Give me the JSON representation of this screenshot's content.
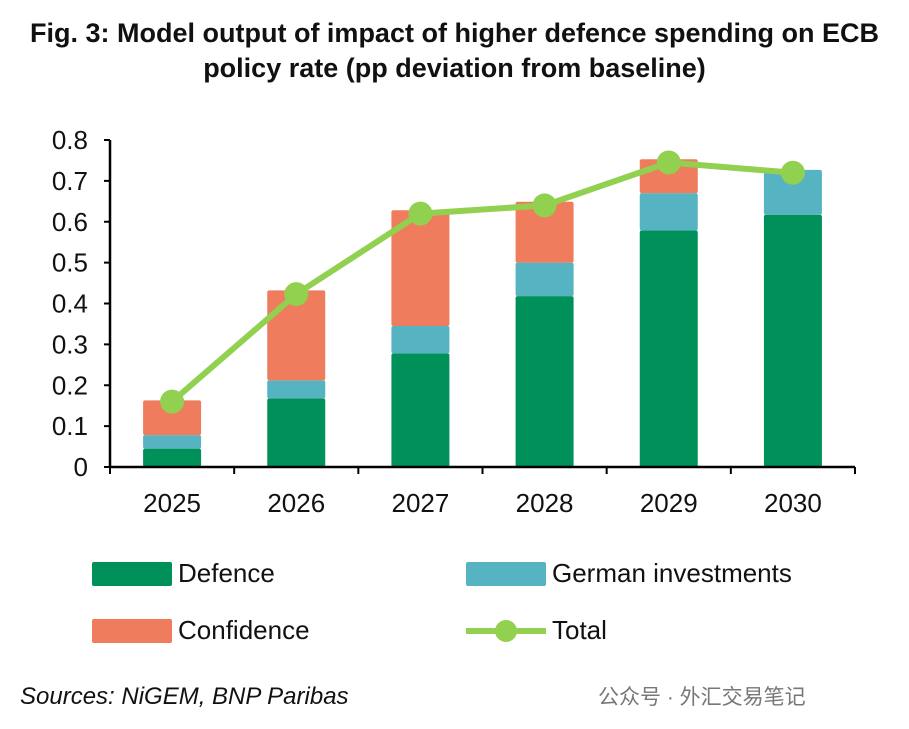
{
  "chart_data": {
    "type": "bar",
    "stacked": true,
    "title": "Fig. 3: Model output of impact of higher defence spending on ECB policy rate (pp deviation from baseline)",
    "xlabel": "",
    "ylabel": "",
    "ylim": [
      0,
      0.8
    ],
    "yticks": [
      "0",
      "0.1",
      "0.2",
      "0.3",
      "0.4",
      "0.5",
      "0.6",
      "0.7",
      "0.8"
    ],
    "categories": [
      "2025",
      "2026",
      "2027",
      "2028",
      "2029",
      "2030"
    ],
    "series": [
      {
        "name": "Defence",
        "kind": "bar",
        "color": "#00905A",
        "values": [
          0.045,
          0.168,
          0.278,
          0.418,
          0.579,
          0.617
        ]
      },
      {
        "name": "German investments",
        "kind": "bar",
        "color": "#56B4C2",
        "values": [
          0.033,
          0.044,
          0.067,
          0.082,
          0.091,
          0.11
        ]
      },
      {
        "name": "Confidence",
        "kind": "bar",
        "color": "#EF7C5C",
        "values": [
          0.085,
          0.22,
          0.283,
          0.149,
          0.083,
          0.0
        ]
      },
      {
        "name": "Total",
        "kind": "line",
        "color": "#92D050",
        "values": [
          0.16,
          0.423,
          0.62,
          0.64,
          0.745,
          0.72
        ]
      }
    ],
    "grid": false,
    "legend_position": "bottom"
  },
  "source": "Sources: NiGEM, BNP Paribas",
  "watermark": "公众号 · 外汇交易笔记"
}
